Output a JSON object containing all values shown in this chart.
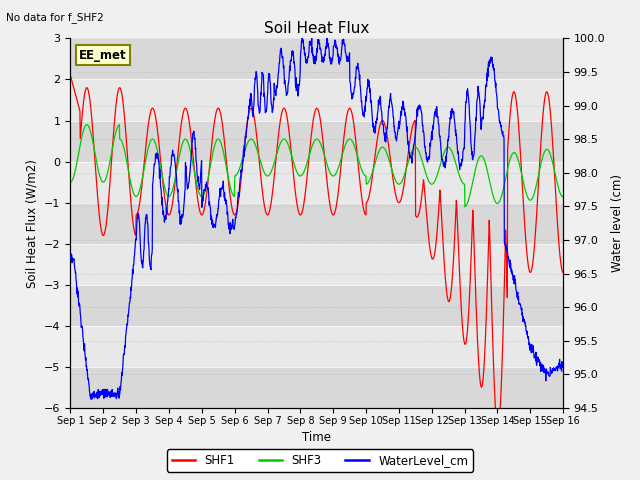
{
  "title": "Soil Heat Flux",
  "top_left_text": "No data for f_SHF2",
  "annotation_box": "EE_met",
  "ylabel_left": "Soil Heat Flux (W/m2)",
  "ylabel_right": "Water level (cm)",
  "xlabel": "Time",
  "ylim_left": [
    -6.0,
    3.0
  ],
  "ylim_right": [
    94.5,
    100.0
  ],
  "yticks_left": [
    -6,
    -5,
    -4,
    -3,
    -2,
    -1,
    0,
    1,
    2,
    3
  ],
  "yticks_right": [
    94.5,
    95.0,
    95.5,
    96.0,
    96.5,
    97.0,
    97.5,
    98.0,
    98.5,
    99.0,
    99.5,
    100.0
  ],
  "xtick_labels": [
    "Sep 1",
    "Sep 2",
    "Sep 3",
    "Sep 4",
    "Sep 5",
    "Sep 6",
    "Sep 7",
    "Sep 8",
    "Sep 9",
    "Sep 10",
    "Sep 11",
    "Sep 12",
    "Sep 13",
    "Sep 14",
    "Sep 15",
    "Sep 16"
  ],
  "colors": {
    "SHF1": "#ff0000",
    "SHF3": "#00cc00",
    "WaterLevel": "#0000ff"
  },
  "legend_labels": [
    "SHF1",
    "SHF3",
    "WaterLevel_cm"
  ],
  "fig_bg": "#f0f0f0",
  "plot_bg_light": "#e8e8e8",
  "plot_bg_dark": "#d8d8d8"
}
